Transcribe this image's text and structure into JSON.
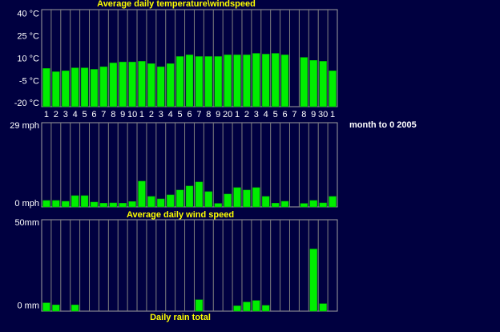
{
  "chart_data": [
    {
      "type": "bar",
      "title": "Average daily temperature\\windspeed",
      "color": "#00ee00",
      "categories": [
        "1",
        "2",
        "3",
        "4",
        "5",
        "6",
        "7",
        "8",
        "9",
        "10",
        "1",
        "2",
        "3",
        "4",
        "5",
        "6",
        "7",
        "8",
        "9",
        "20",
        "1",
        "2",
        "3",
        "4",
        "5",
        "6",
        "7",
        "8",
        "9",
        "30",
        "1"
      ],
      "values": [
        3.6,
        1.4,
        2,
        4,
        4,
        3,
        4.7,
        7.3,
        7.9,
        7.9,
        8.4,
        6.8,
        4.7,
        6.8,
        11.6,
        12.7,
        11.6,
        11.6,
        11.6,
        12.7,
        12.7,
        12.7,
        13.7,
        13.2,
        13.7,
        12.7,
        null,
        11,
        9,
        8.4,
        2
      ],
      "ylim": [
        -22,
        43
      ],
      "yticks": [
        {
          "value": 40,
          "label": "40 °C"
        },
        {
          "value": 25,
          "label": "25 °C"
        },
        {
          "value": 10,
          "label": "10 °C"
        },
        {
          "value": -5,
          "label": "-5 °C"
        },
        {
          "value": -20,
          "label": "-20 °C"
        }
      ]
    },
    {
      "type": "bar",
      "title": "Average daily wind speed",
      "annotation": "month to 0 2005",
      "color": "#00ee00",
      "values": [
        1.2,
        1.2,
        0.9,
        3,
        3,
        0.6,
        0.2,
        0.3,
        0.2,
        0.8,
        8.4,
        2.7,
        1.8,
        3.3,
        5.1,
        6.6,
        8.1,
        4.5,
        0.1,
        3.6,
        6,
        5.1,
        6,
        2.7,
        0.2,
        0.9,
        null,
        0.1,
        1.2,
        0.3,
        2.7
      ],
      "ylim": [
        -1.2,
        30.2
      ],
      "yticks": [
        {
          "value": 29,
          "label": "29 mph"
        },
        {
          "value": 0,
          "label": "0 mph"
        }
      ]
    },
    {
      "type": "bar",
      "title": "Daily rain total",
      "color": "#00ee00",
      "values": [
        2,
        0.8,
        null,
        0.8,
        null,
        null,
        null,
        null,
        null,
        null,
        null,
        null,
        null,
        null,
        null,
        null,
        3.9,
        null,
        null,
        null,
        0.2,
        2.5,
        3.4,
        0.5,
        null,
        null,
        null,
        null,
        34.4,
        1.5,
        null
      ],
      "ylim": [
        -3,
        52
      ],
      "yticks": [
        {
          "value": 50,
          "label": "50mm"
        },
        {
          "value": 0,
          "label": "0 mm"
        }
      ]
    }
  ]
}
